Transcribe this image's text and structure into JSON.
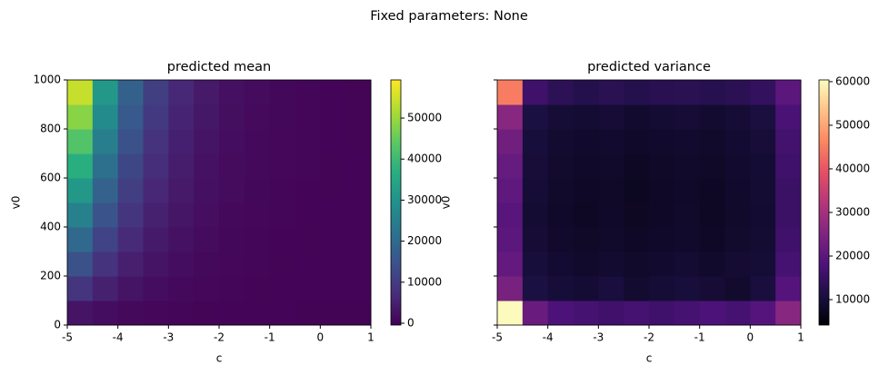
{
  "figure_title": "Fixed parameters: None",
  "chart_data": [
    {
      "type": "heatmap",
      "title": "predicted mean",
      "x_label": "c",
      "y_label": "v0",
      "cmap": "viridis",
      "xbins": [
        -5,
        -4.5,
        -4,
        -3.5,
        -3,
        -2.5,
        -2,
        -1.5,
        -1,
        -0.5,
        0,
        0.5,
        1
      ],
      "ybins": [
        0,
        100,
        200,
        300,
        400,
        500,
        600,
        700,
        800,
        900,
        1000
      ],
      "z": [
        [
          2850,
          1650,
          950,
          550,
          325,
          190,
          110,
          65,
          40,
          25,
          15,
          10
        ],
        [
          8550,
          4950,
          2850,
          1650,
          975,
          570,
          330,
          195,
          120,
          75,
          45,
          30
        ],
        [
          14250,
          8250,
          4750,
          2750,
          1625,
          950,
          550,
          325,
          200,
          125,
          75,
          50
        ],
        [
          19950,
          11550,
          6650,
          3850,
          2275,
          1330,
          770,
          455,
          280,
          175,
          105,
          70
        ],
        [
          25650,
          14850,
          8550,
          4950,
          2925,
          1710,
          990,
          585,
          360,
          225,
          135,
          90
        ],
        [
          31350,
          18150,
          10450,
          6050,
          3575,
          2090,
          1210,
          715,
          440,
          275,
          165,
          110
        ],
        [
          37050,
          21450,
          12350,
          7150,
          4225,
          2470,
          1430,
          845,
          520,
          325,
          195,
          130
        ],
        [
          42750,
          24750,
          14250,
          8250,
          4875,
          2850,
          1650,
          975,
          600,
          375,
          225,
          150
        ],
        [
          48450,
          28050,
          16150,
          9350,
          5525,
          3230,
          1870,
          1105,
          680,
          425,
          255,
          170
        ],
        [
          54150,
          31350,
          18050,
          10450,
          6175,
          3610,
          2090,
          1235,
          760,
          475,
          285,
          190
        ]
      ],
      "xlim": [
        -5,
        1
      ],
      "xticks": [
        -5,
        -4,
        -3,
        -2,
        -1,
        0,
        1
      ],
      "ylim": [
        0,
        1000
      ],
      "yticks": [
        0,
        200,
        400,
        600,
        800,
        1000
      ],
      "ytick_labels": true,
      "clim": [
        -450,
        59300
      ],
      "cticks": [
        0,
        10000,
        20000,
        30000,
        40000,
        50000
      ]
    },
    {
      "type": "heatmap",
      "title": "predicted variance",
      "x_label": "c",
      "y_label": "v0",
      "cmap": "magma",
      "xbins": [
        -5,
        -4.5,
        -4,
        -3.5,
        -3,
        -2.5,
        -2,
        -1.5,
        -1,
        -0.5,
        0,
        0.5,
        1
      ],
      "ybins": [
        0,
        100,
        200,
        300,
        400,
        500,
        600,
        700,
        800,
        900,
        1000
      ],
      "z": [
        [
          60000,
          22000,
          18000,
          17000,
          16000,
          17000,
          16000,
          17000,
          18000,
          17000,
          19000,
          26000
        ],
        [
          24000,
          11000,
          10000,
          9500,
          10500,
          9000,
          9800,
          10200,
          9600,
          8800,
          10500,
          19000
        ],
        [
          21000,
          10200,
          9200,
          8700,
          9100,
          8400,
          8900,
          9300,
          8600,
          9400,
          9800,
          17000
        ],
        [
          20000,
          9600,
          8600,
          8100,
          8500,
          7900,
          8300,
          8700,
          8000,
          8800,
          9400,
          16000
        ],
        [
          19500,
          9400,
          8300,
          7800,
          8200,
          7600,
          8000,
          8400,
          7700,
          8500,
          9200,
          15500
        ],
        [
          20500,
          9700,
          8500,
          7900,
          8100,
          7500,
          7900,
          8200,
          7800,
          8600,
          9300,
          15500
        ],
        [
          21500,
          9900,
          8800,
          8200,
          8400,
          7800,
          8100,
          8500,
          8100,
          8900,
          9500,
          16000
        ],
        [
          23000,
          10300,
          9100,
          8600,
          8900,
          8200,
          8600,
          8900,
          8500,
          9200,
          9900,
          16500
        ],
        [
          26000,
          11000,
          9800,
          9300,
          9600,
          8900,
          9300,
          9600,
          9100,
          9800,
          10600,
          17500
        ],
        [
          45000,
          16000,
          13500,
          12500,
          13000,
          12500,
          12800,
          13000,
          12600,
          13200,
          14500,
          20000
        ]
      ],
      "xlim": [
        -5,
        1
      ],
      "xticks": [
        -5,
        -4,
        -3,
        -2,
        -1,
        0,
        1
      ],
      "ylim": [
        0,
        1000
      ],
      "yticks": [
        0,
        200,
        400,
        600,
        800,
        1000
      ],
      "ytick_labels": false,
      "clim": [
        4170,
        60400
      ],
      "cticks": [
        10000,
        20000,
        30000,
        40000,
        50000,
        60000
      ]
    }
  ]
}
